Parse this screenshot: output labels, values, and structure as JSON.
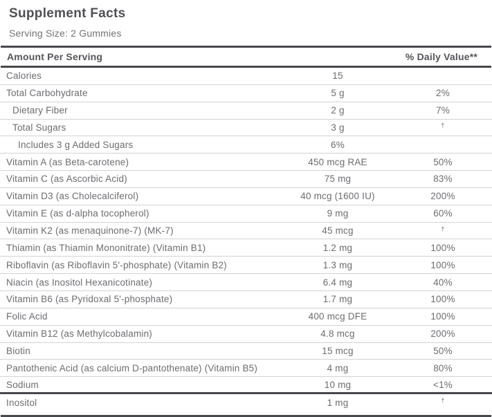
{
  "header": {
    "title": "Supplement Facts",
    "serving_size": "Serving Size: 2 Gummies"
  },
  "table": {
    "amount_header": "Amount Per Serving",
    "dv_header": "% Daily Value**",
    "rows": [
      {
        "label": "Calories",
        "amount": "15",
        "dv": "",
        "indent": 0
      },
      {
        "label": "Total Carbohydrate",
        "amount": "5 g",
        "dv": "2%",
        "indent": 0
      },
      {
        "label": "Dietary Fiber",
        "amount": "2 g",
        "dv": "7%",
        "indent": 1
      },
      {
        "label": "Total Sugars",
        "amount": "3 g",
        "dv": "†",
        "indent": 1
      },
      {
        "label": "Includes 3 g Added Sugars",
        "amount": "6%",
        "dv": "",
        "indent": 2
      },
      {
        "label": "Vitamin A (as Beta-carotene)",
        "amount": "450 mcg RAE",
        "dv": "50%",
        "indent": 0
      },
      {
        "label": "Vitamin C (as Ascorbic Acid)",
        "amount": "75 mg",
        "dv": "83%",
        "indent": 0
      },
      {
        "label": "Vitamin D3 (as Cholecalciferol)",
        "amount": "40 mcg (1600 IU)",
        "dv": "200%",
        "indent": 0
      },
      {
        "label": "Vitamin E (as d-alpha tocopherol)",
        "amount": "9 mg",
        "dv": "60%",
        "indent": 0
      },
      {
        "label": "Vitamin K2 (as menaquinone-7) (MK-7)",
        "amount": "45 mcg",
        "dv": "†",
        "indent": 0
      },
      {
        "label": "Thiamin (as Thiamin Mononitrate) (Vitamin B1)",
        "amount": "1.2 mg",
        "dv": "100%",
        "indent": 0
      },
      {
        "label": "Riboflavin (as Riboflavin 5'-phosphate) (Vitamin B2)",
        "amount": "1.3 mg",
        "dv": "100%",
        "indent": 0
      },
      {
        "label": "Niacin (as Inositol Hexanicotinate)",
        "amount": "6.4 mg",
        "dv": "40%",
        "indent": 0
      },
      {
        "label": "Vitamin B6 (as Pyridoxal 5'-phosphate)",
        "amount": "1.7 mg",
        "dv": "100%",
        "indent": 0
      },
      {
        "label": "Folic Acid",
        "amount": "400 mcg DFE",
        "dv": "100%",
        "indent": 0
      },
      {
        "label": "Vitamin B12 (as Methylcobalamin)",
        "amount": "4.8 mcg",
        "dv": "200%",
        "indent": 0
      },
      {
        "label": "Biotin",
        "amount": "15 mcg",
        "dv": "50%",
        "indent": 0
      },
      {
        "label": "Pantothenic Acid (as calcium D-pantothenate) (Vitamin B5)",
        "amount": "4 mg",
        "dv": "80%",
        "indent": 0
      },
      {
        "label": "Sodium",
        "amount": "10 mg",
        "dv": "<1%",
        "indent": 0,
        "thick_bottom": true
      },
      {
        "label": "Inositol",
        "amount": "1 mg",
        "dv": "†",
        "indent": 0,
        "last": true
      }
    ]
  },
  "colors": {
    "background": "#ffffff",
    "text": "#6b6c70",
    "heading_text": "#54555a",
    "thick_line": "#47484c",
    "thin_line": "#d3d3d5"
  }
}
